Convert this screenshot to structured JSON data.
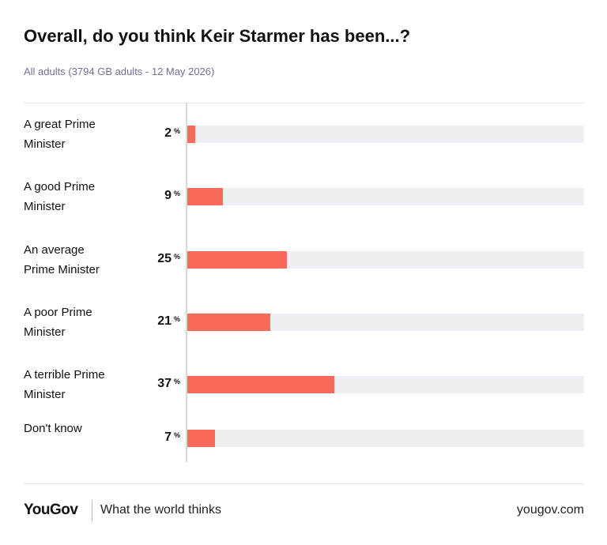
{
  "chart_data": {
    "type": "hbar",
    "title": "Overall, do you think Keir Starmer has been...?",
    "subtitle": "All adults (3794 GB adults - 12 May 2026)",
    "categories": [
      "A great Prime Minister",
      "A good Prime Minister",
      "An average Prime Minister",
      "A poor Prime Minister",
      "A terrible Prime Minister",
      "Don't know"
    ],
    "values": [
      2,
      9,
      25,
      21,
      37,
      7
    ],
    "value_unit": "%",
    "color": "#fa6a5b",
    "track_color": "#efeff3",
    "xlim": [
      0,
      100
    ]
  },
  "footer": {
    "brand": "YouGov",
    "tagline": "What the world thinks",
    "url": "yougov.com"
  }
}
